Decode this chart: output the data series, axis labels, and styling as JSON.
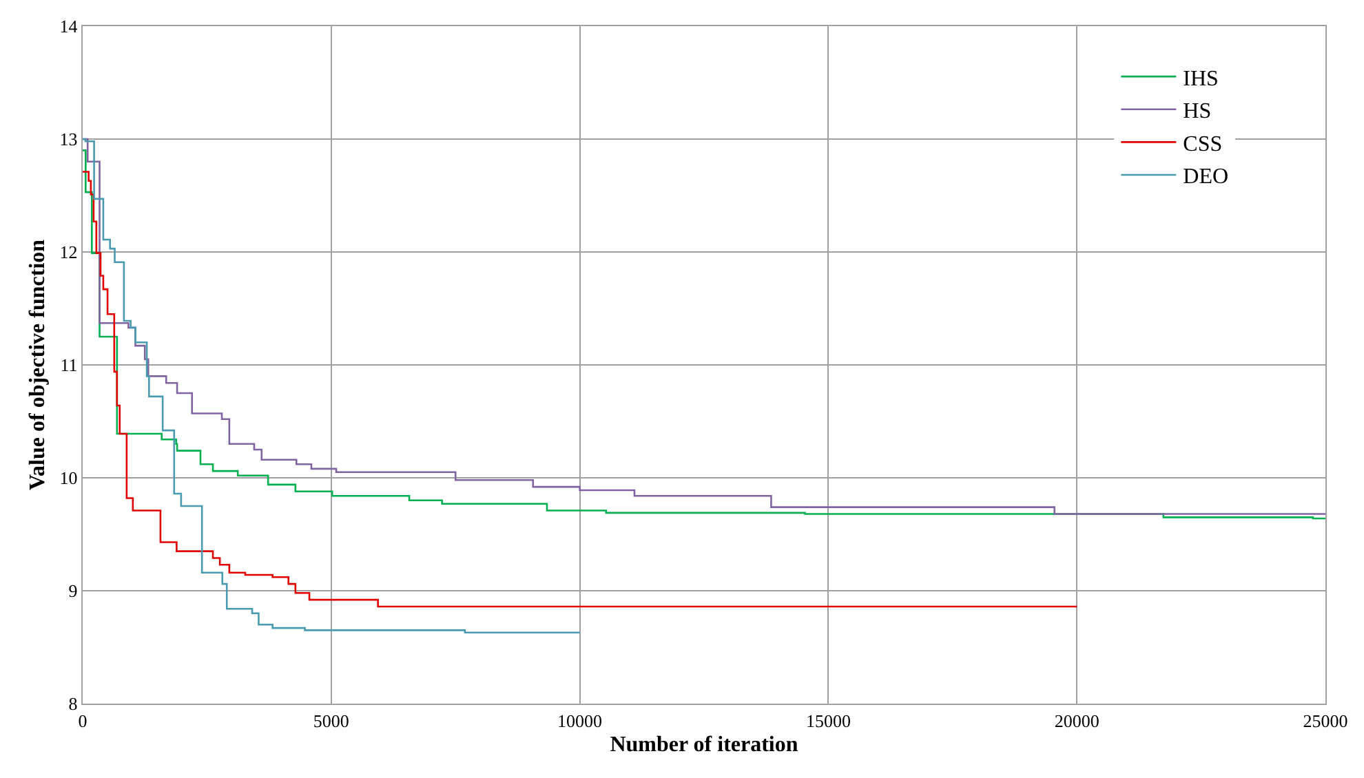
{
  "chart_data": {
    "type": "step",
    "xlabel": "Number of iteration",
    "ylabel": "Value of objective function",
    "xlim": [
      0,
      25000
    ],
    "xticks": [
      0,
      5000,
      10000,
      15000,
      20000,
      25000
    ],
    "ylim": [
      8,
      14
    ],
    "yticks": [
      8,
      9,
      10,
      11,
      12,
      13,
      14
    ],
    "grid": true,
    "legend": "top right",
    "marker": "none",
    "line_style": "solid",
    "series": [
      {
        "name": "IHS",
        "color": "#00b050",
        "x": [
          0,
          60,
          185,
          340,
          690,
          1590,
          1880,
          1900,
          2370,
          2620,
          3120,
          3730,
          4280,
          5020,
          6570,
          7230,
          9340,
          10530,
          14530,
          21740,
          24750,
          25000
        ],
        "values": [
          12.9,
          12.53,
          11.99,
          11.25,
          10.39,
          10.34,
          10.3,
          10.24,
          10.12,
          10.06,
          10.02,
          9.94,
          9.88,
          9.84,
          9.8,
          9.77,
          9.71,
          9.69,
          9.68,
          9.65,
          9.64,
          9.64
        ]
      },
      {
        "name": "HS",
        "color": "#8064a2",
        "x": [
          0,
          100,
          340,
          920,
          1060,
          1250,
          1320,
          1680,
          1900,
          2200,
          2800,
          2950,
          3450,
          3600,
          4300,
          4600,
          5100,
          7500,
          9060,
          10000,
          11100,
          13850,
          19550,
          25000
        ],
        "values": [
          13.0,
          12.8,
          11.37,
          11.33,
          11.17,
          11.05,
          10.9,
          10.84,
          10.75,
          10.57,
          10.52,
          10.3,
          10.25,
          10.16,
          10.12,
          10.08,
          10.05,
          9.98,
          9.92,
          9.89,
          9.84,
          9.74,
          9.68,
          9.68
        ]
      },
      {
        "name": "CSS",
        "color": "#e00000",
        "x": [
          0,
          120,
          165,
          220,
          275,
          360,
          415,
          500,
          635,
          690,
          745,
          885,
          1010,
          1565,
          1890,
          2620,
          2760,
          2950,
          3270,
          3820,
          4140,
          4280,
          4560,
          5940,
          20000
        ],
        "values": [
          12.71,
          12.63,
          12.51,
          12.27,
          11.99,
          11.79,
          11.67,
          11.45,
          10.94,
          10.64,
          10.39,
          9.82,
          9.71,
          9.43,
          9.35,
          9.29,
          9.23,
          9.16,
          9.14,
          9.12,
          9.06,
          8.98,
          8.92,
          8.86,
          8.86
        ]
      },
      {
        "name": "DEO",
        "color": "#4a9bb0",
        "x": [
          0,
          55,
          230,
          415,
          550,
          645,
          830,
          965,
          1060,
          1290,
          1335,
          1610,
          1840,
          1980,
          2400,
          2810,
          2900,
          3410,
          3540,
          3820,
          4470,
          7690,
          10000
        ],
        "values": [
          13.0,
          12.98,
          12.47,
          12.11,
          12.03,
          11.91,
          11.39,
          11.33,
          11.2,
          10.9,
          10.72,
          10.42,
          9.86,
          9.75,
          9.16,
          9.06,
          8.84,
          8.8,
          8.7,
          8.67,
          8.65,
          8.63,
          8.63
        ]
      }
    ]
  }
}
